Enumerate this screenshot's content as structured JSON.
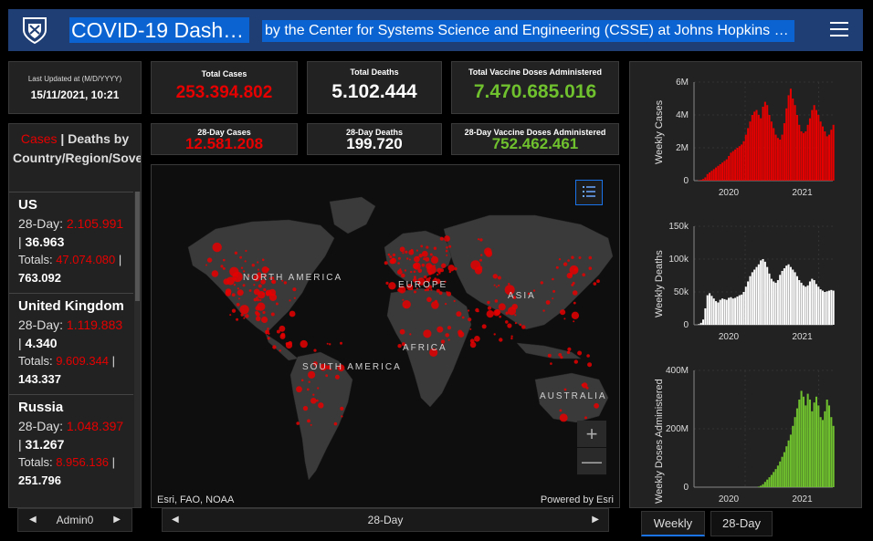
{
  "header": {
    "title": "COVID-19 Dash…",
    "subtitle": "by the Center for Systems Science and Engineering (CSSE) at Johns Hopkins …"
  },
  "last_updated": {
    "label": "Last Updated at (M/D/YYYY)",
    "value": "15/11/2021, 10:21"
  },
  "stats": {
    "total_cases_label": "Total Cases",
    "total_cases": "253.394.802",
    "total_deaths_label": "Total Deaths",
    "total_deaths": "5.102.444",
    "total_vaccine_label": "Total Vaccine Doses Administered",
    "total_vaccine": "7.470.685.016",
    "cases_28_label": "28-Day Cases",
    "cases_28": "12.581.208",
    "deaths_28_label": "28-Day Deaths",
    "deaths_28": "199.720",
    "vaccine_28_label": "28-Day Vaccine Doses Administered",
    "vaccine_28": "752.462.461"
  },
  "list": {
    "header_cases": "Cases",
    "header_sep": " | ",
    "header_rest": "Deaths by Country/Region/Sovereignty",
    "items": [
      {
        "name": "US",
        "day_label": "28-Day:",
        "cases_28": "2.105.991",
        "deaths_28": "36.963",
        "totals_label": "Totals:",
        "cases_total": "47.074.080",
        "deaths_total": "763.092"
      },
      {
        "name": "United Kingdom",
        "day_label": "28-Day:",
        "cases_28": "1.119.883",
        "deaths_28": "4.340",
        "totals_label": "Totals:",
        "cases_total": "9.609.344",
        "deaths_total": "143.337"
      },
      {
        "name": "Russia",
        "day_label": "28-Day:",
        "cases_28": "1.048.397",
        "deaths_28": "31.267",
        "totals_label": "Totals:",
        "cases_total": "8.956.136",
        "deaths_total": "251.796"
      }
    ]
  },
  "map": {
    "labels": {
      "north_america": "NORTH AMERICA",
      "south_america": "SOUTH AMERICA",
      "europe": "EUROPE",
      "asia": "ASIA",
      "africa": "AFRICA",
      "australia": "AUSTRALIA"
    },
    "attribution_left": "Esri, FAO, NOAA",
    "attribution_right": "Powered by Esri",
    "zoom_in": "+",
    "zoom_out": "—"
  },
  "pagers": {
    "left_label": "Admin0",
    "center_label": "28-Day"
  },
  "tabs": {
    "weekly": "Weekly",
    "day28": "28-Day"
  },
  "colors": {
    "cases": "#e60000",
    "deaths": "#ffffff",
    "vaccine": "#70c12e",
    "header_bg": "#1f3e73",
    "highlight": "#0b63d1"
  },
  "chart_data": [
    {
      "type": "bar",
      "ylabel": "Weekly Cases",
      "yticks": [
        "0",
        "2M",
        "4M",
        "6M"
      ],
      "ylim": [
        0,
        6000000
      ],
      "xticks": [
        "2020",
        "2021"
      ],
      "color": "#e60000",
      "values": [
        0,
        0.02,
        0.05,
        0.1,
        0.2,
        0.4,
        0.5,
        0.6,
        0.7,
        0.8,
        0.9,
        1.0,
        1.1,
        1.2,
        1.3,
        1.5,
        1.7,
        1.8,
        1.9,
        2.0,
        2.1,
        2.2,
        2.4,
        2.8,
        3.2,
        3.6,
        4.0,
        4.2,
        4.3,
        4.0,
        3.8,
        4.5,
        4.8,
        4.6,
        4.0,
        3.6,
        3.2,
        2.8,
        2.6,
        2.5,
        2.8,
        3.5,
        4.4,
        5.2,
        5.6,
        5.0,
        4.6,
        4.0,
        3.4,
        3.0,
        2.9,
        3.0,
        3.4,
        3.8,
        4.3,
        4.6,
        4.3,
        4.0,
        3.6,
        3.3,
        3.0,
        2.7,
        2.8,
        3.1,
        3.4
      ],
      "value_unit": "millions"
    },
    {
      "type": "bar",
      "ylabel": "Weekly Deaths",
      "yticks": [
        "0",
        "50k",
        "100k",
        "150k"
      ],
      "ylim": [
        0,
        150000
      ],
      "xticks": [
        "2020",
        "2021"
      ],
      "color": "#ffffff",
      "values": [
        0,
        1,
        3,
        8,
        25,
        45,
        48,
        44,
        40,
        36,
        34,
        38,
        40,
        39,
        38,
        41,
        42,
        40,
        41,
        43,
        45,
        46,
        50,
        58,
        66,
        74,
        80,
        84,
        88,
        92,
        98,
        100,
        96,
        88,
        78,
        70,
        66,
        64,
        68,
        76,
        82,
        86,
        90,
        92,
        88,
        84,
        80,
        74,
        68,
        64,
        60,
        58,
        60,
        66,
        70,
        68,
        62,
        58,
        54,
        52,
        50,
        51,
        52,
        53,
        52
      ],
      "value_unit": "thousands"
    },
    {
      "type": "bar",
      "ylabel": "Weekly Doses Administered",
      "yticks": [
        "0",
        "200M",
        "400M"
      ],
      "ylim": [
        0,
        400000000
      ],
      "xticks": [
        "2020",
        "2021"
      ],
      "color": "#70c12e",
      "values": [
        0,
        0,
        0,
        0,
        0,
        0,
        0,
        0,
        0,
        0,
        0,
        0,
        0,
        0,
        0,
        0,
        0,
        0,
        0,
        0,
        0,
        0,
        0,
        0,
        0,
        0,
        0,
        0,
        0,
        2,
        5,
        10,
        18,
        26,
        34,
        42,
        52,
        62,
        74,
        88,
        104,
        120,
        140,
        160,
        180,
        210,
        240,
        270,
        300,
        330,
        310,
        280,
        320,
        300,
        260,
        290,
        310,
        280,
        240,
        230,
        260,
        300,
        280,
        240,
        210
      ],
      "value_unit": "millions"
    }
  ]
}
